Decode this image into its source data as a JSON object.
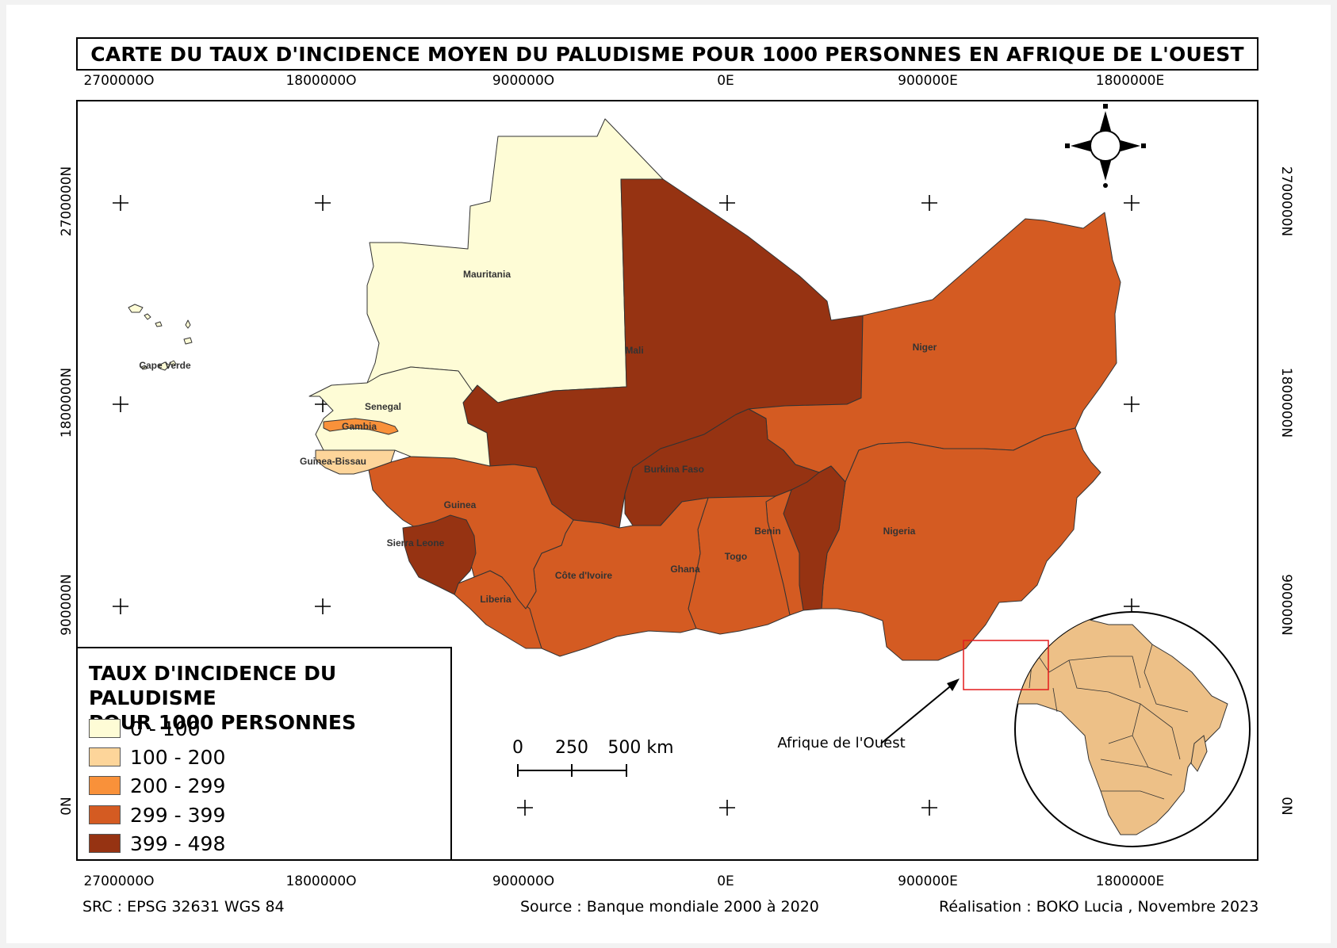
{
  "title": "CARTE DU TAUX D'INCIDENCE MOYEN DU PALUDISME POUR 1000 PERSONNES EN AFRIQUE DE L'OUEST",
  "grid": {
    "x_labels": [
      "2700000O",
      "1800000O",
      "900000O",
      "0E",
      "900000E",
      "1800000E"
    ],
    "y_labels": [
      "2700000N",
      "1800000N",
      "900000N",
      "0N"
    ]
  },
  "colors": {
    "class_0_100": "#fefcd6",
    "class_100_200": "#fdd59a",
    "class_200_299": "#f9913a",
    "class_299_399": "#d45b22",
    "class_399_498": "#963312",
    "inset_africa": "#edc087",
    "inset_box": "#e31a1c"
  },
  "countries": [
    {
      "name": "Mauritania",
      "class": "0 - 100"
    },
    {
      "name": "Mali",
      "class": "399 - 498"
    },
    {
      "name": "Niger",
      "class": "299 - 399"
    },
    {
      "name": "Cape Verde",
      "class": "0 - 100"
    },
    {
      "name": "Senegal",
      "class": "0 - 100"
    },
    {
      "name": "Gambia",
      "class": "200 - 299"
    },
    {
      "name": "Guinea-Bissau",
      "class": "100 - 200"
    },
    {
      "name": "Guinea",
      "class": "299 - 399"
    },
    {
      "name": "Sierra Leone",
      "class": "399 - 498"
    },
    {
      "name": "Liberia",
      "class": "299 - 399"
    },
    {
      "name": "Côte d'Ivoire",
      "class": "299 - 399"
    },
    {
      "name": "Burkina Faso",
      "class": "399 - 498"
    },
    {
      "name": "Ghana",
      "class": "299 - 399"
    },
    {
      "name": "Togo",
      "class": "299 - 399"
    },
    {
      "name": "Benin",
      "class": "399 - 498"
    },
    {
      "name": "Nigeria",
      "class": "299 - 399"
    }
  ],
  "legend": {
    "title_line1": "TAUX D'INCIDENCE DU PALUDISME",
    "title_line2": "POUR 1000 PERSONNES",
    "items": [
      {
        "label": "0 - 100",
        "color": "#fefcd6"
      },
      {
        "label": "100 - 200",
        "color": "#fdd59a"
      },
      {
        "label": "200 - 299",
        "color": "#f9913a"
      },
      {
        "label": "299 - 399",
        "color": "#d45b22"
      },
      {
        "label": "399 - 498",
        "color": "#963312"
      }
    ]
  },
  "scale_bar": {
    "labels": [
      "0",
      "250",
      "500 km"
    ]
  },
  "inset": {
    "label": "Afrique de l'Ouest"
  },
  "north_arrow": {
    "icon": "compass-rose-icon"
  },
  "footer": {
    "src": "SRC : EPSG 32631 WGS 84",
    "source": "Source : Banque mondiale 2000 à 2020",
    "author": "Réalisation : BOKO Lucia , Novembre 2023"
  }
}
